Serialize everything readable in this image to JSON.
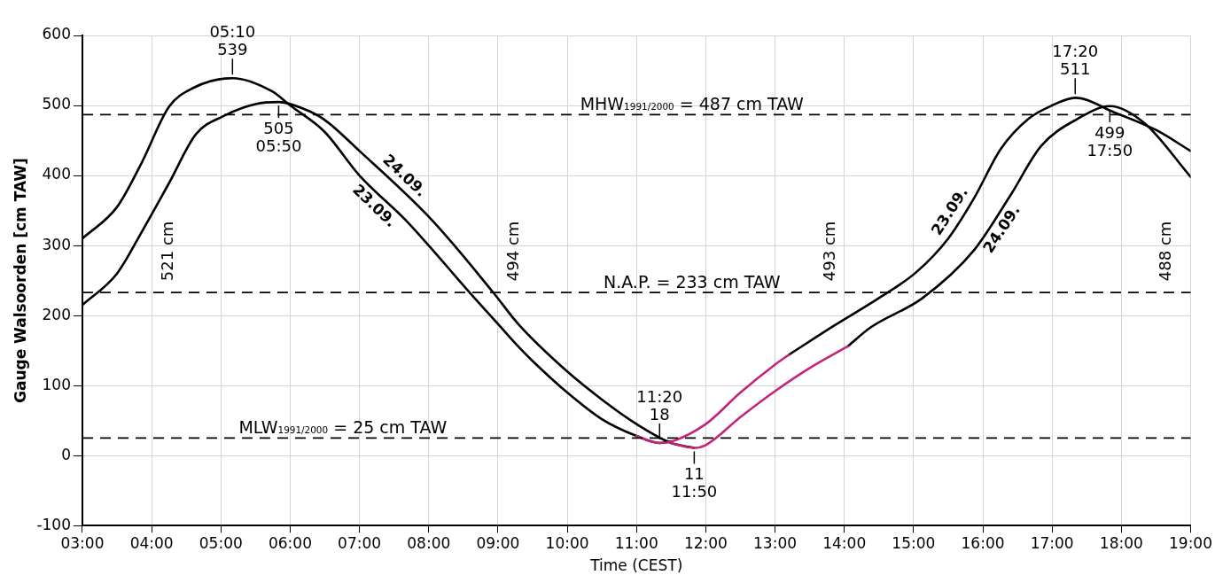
{
  "chart_data": {
    "type": "line",
    "xlabel": "Time (CEST)",
    "ylabel": "Gauge Walsoorden [cm TAW]",
    "xlim": [
      3,
      19
    ],
    "xticks": [
      {
        "value": 3,
        "label": "03:00"
      },
      {
        "value": 4,
        "label": "04:00"
      },
      {
        "value": 5,
        "label": "05:00"
      },
      {
        "value": 6,
        "label": "06:00"
      },
      {
        "value": 7,
        "label": "07:00"
      },
      {
        "value": 8,
        "label": "08:00"
      },
      {
        "value": 9,
        "label": "09:00"
      },
      {
        "value": 10,
        "label": "10:00"
      },
      {
        "value": 11,
        "label": "11:00"
      },
      {
        "value": 12,
        "label": "12:00"
      },
      {
        "value": 13,
        "label": "13:00"
      },
      {
        "value": 14,
        "label": "14:00"
      },
      {
        "value": 15,
        "label": "15:00"
      },
      {
        "value": 16,
        "label": "16:00"
      },
      {
        "value": 17,
        "label": "17:00"
      },
      {
        "value": 18,
        "label": "18:00"
      },
      {
        "value": 19,
        "label": "19:00"
      }
    ],
    "ylim": [
      -100,
      600
    ],
    "yticks": [
      -100,
      0,
      100,
      200,
      300,
      400,
      500,
      600
    ],
    "grid": true,
    "legend": false,
    "marker": "none",
    "line_style": "solid",
    "series": [
      {
        "name": "23.09.",
        "color": "#000000",
        "x": [
          3.0,
          3.5,
          3.86,
          4.25,
          4.6,
          5.1667,
          5.74,
          6.0,
          6.49,
          7.0,
          7.66,
          8.0,
          8.59,
          9.0,
          9.3,
          9.5,
          10.0,
          10.5,
          11.0,
          11.3333,
          11.5,
          12.0,
          12.5,
          13.0,
          13.2,
          13.86,
          14.5,
          15.04,
          15.5,
          15.87,
          16.26,
          16.66,
          17.0,
          17.3333,
          17.9,
          18.5,
          19.0
        ],
        "values": [
          310,
          355,
          419,
          498,
          525,
          539,
          520,
          500,
          463,
          400,
          337,
          300,
          233,
          188,
          155,
          135,
          90,
          52,
          28,
          18,
          20,
          null,
          null,
          null,
          144,
          186,
          225,
          262,
          310,
          367,
          438,
          481,
          500,
          511,
          490,
          465,
          435
        ]
      },
      {
        "name": "24.09.",
        "color": "#000000",
        "x": [
          3.0,
          3.5,
          3.86,
          4.25,
          4.64,
          5.04,
          5.5,
          5.8333,
          6.2,
          6.49,
          7.0,
          8.04,
          8.93,
          9.3,
          10.0,
          10.5,
          11.0,
          11.5,
          11.8333,
          12.0,
          12.5,
          13.0,
          13.5,
          14.05,
          14.38,
          15.13,
          15.87,
          16.4,
          16.84,
          17.37,
          17.8333,
          18.33,
          19.0
        ],
        "values": [
          215,
          260,
          320,
          389,
          459,
          485,
          502,
          505,
          495,
          480,
          435,
          337,
          233,
          187,
          120,
          80,
          45,
          18,
          11,
          null,
          null,
          null,
          null,
          156,
          183,
          225,
          293,
          372,
          442,
          481,
          499,
          475,
          398
        ]
      },
      {
        "color": "#c2257a",
        "x": [
          11.0,
          11.3333,
          11.5,
          12.0,
          12.5,
          13.0,
          13.2
        ],
        "values": [
          28,
          18,
          20,
          45,
          90,
          130,
          144
        ]
      },
      {
        "color": "#c2257a",
        "x": [
          11.5,
          11.8333,
          12.0,
          12.5,
          13.0,
          13.5,
          14.05
        ],
        "values": [
          18,
          11,
          15,
          55,
          92,
          125,
          156
        ]
      }
    ],
    "ref_lines": [
      {
        "axis": "y",
        "value": 487,
        "label": "MHW$_{1991/2000}$ = 487 cm TAW",
        "color": "#000000",
        "line_style": "dashed"
      },
      {
        "axis": "y",
        "value": 233,
        "label": "N.A.P. = 233 cm TAW",
        "color": "#000000",
        "line_style": "dashed"
      },
      {
        "axis": "y",
        "value": 25,
        "label": "MLW$_{1991/2000}$ = 25 cm TAW",
        "color": "#000000",
        "line_style": "dashed"
      }
    ],
    "annotations": [
      {
        "text": "05:10\n539",
        "x": 5.1667,
        "y": 539
      },
      {
        "text": "505\n05:50",
        "x": 5.8333,
        "y": 505
      },
      {
        "text": "11:20\n18",
        "x": 11.3333,
        "y": 18
      },
      {
        "text": "11\n11:50",
        "x": 11.8333,
        "y": 11
      },
      {
        "text": "17:20\n511",
        "x": 17.3333,
        "y": 511
      },
      {
        "text": "499\n17:50",
        "x": 17.8333,
        "y": 499
      },
      "521 cm",
      "494 cm",
      "493 cm",
      "488 cm"
    ]
  }
}
